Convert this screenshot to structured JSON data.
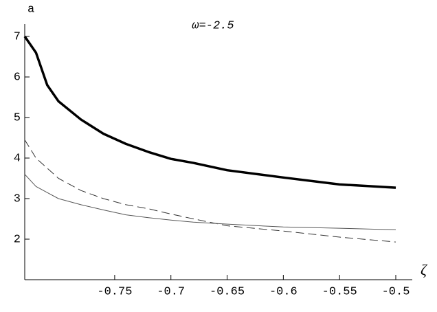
{
  "chart_data": {
    "type": "line",
    "title": "ω=-2.5",
    "y_label": "a",
    "x_label": "ζ",
    "x": [
      -0.83,
      -0.82,
      -0.81,
      -0.8,
      -0.78,
      -0.76,
      -0.74,
      -0.72,
      -0.7,
      -0.68,
      -0.65,
      -0.6,
      -0.55,
      -0.5
    ],
    "series": [
      {
        "color": "#000000",
        "line_width": 3.5,
        "dashed": false,
        "values": [
          7.0,
          6.6,
          5.8,
          5.4,
          4.95,
          4.6,
          4.35,
          4.15,
          3.98,
          3.88,
          3.7,
          3.52,
          3.35,
          3.27
        ]
      },
      {
        "color": "#333333",
        "line_width": 1,
        "dashed": true,
        "values": [
          4.45,
          4.0,
          3.75,
          3.5,
          3.2,
          3.0,
          2.85,
          2.75,
          2.62,
          2.5,
          2.33,
          2.2,
          2.05,
          1.93
        ]
      },
      {
        "color": "#555555",
        "line_width": 1,
        "dashed": false,
        "values": [
          3.6,
          3.3,
          3.15,
          3.0,
          2.85,
          2.72,
          2.6,
          2.53,
          2.47,
          2.42,
          2.37,
          2.3,
          2.27,
          2.23
        ]
      }
    ],
    "xlim": [
      -0.83,
      -0.5
    ],
    "ylim": [
      1,
      7.3
    ],
    "xticks": [
      -0.75,
      -0.7,
      -0.65,
      -0.6,
      -0.55,
      -0.5
    ],
    "yticks": [
      2,
      3,
      4,
      5,
      6,
      7
    ]
  }
}
